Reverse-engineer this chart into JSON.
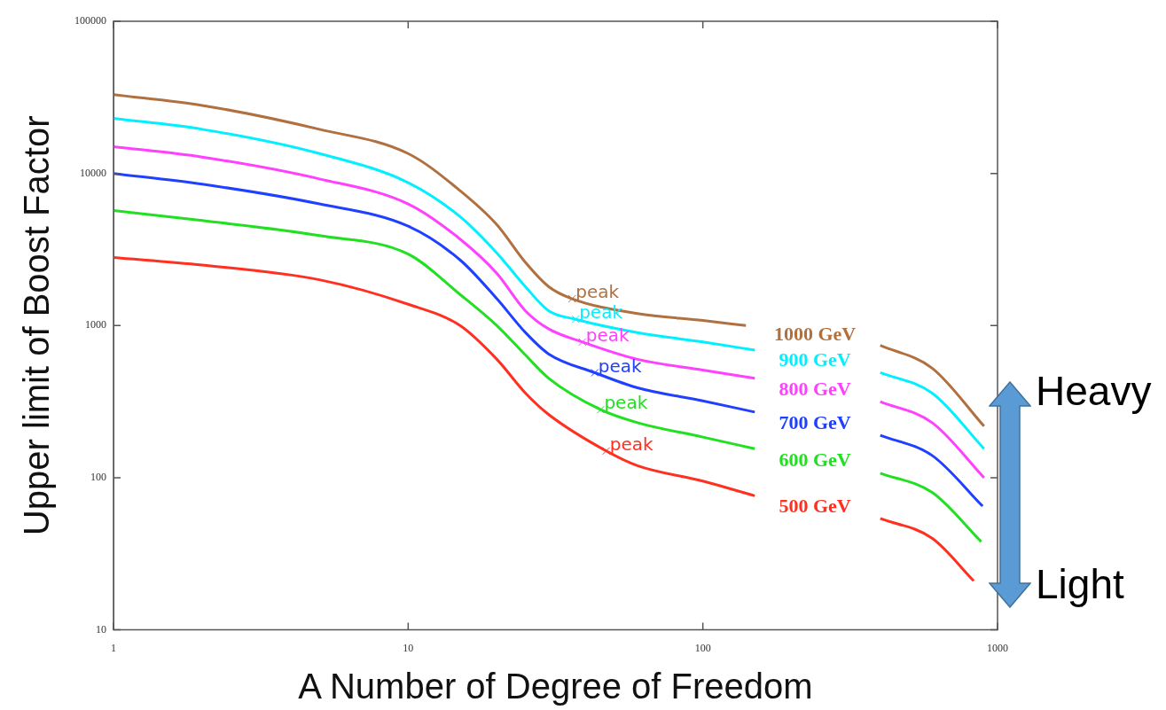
{
  "chart_data": {
    "type": "line",
    "xlabel": "A Number of Degree of Freedom",
    "ylabel": "Upper limit of Boost Factor",
    "xlim": [
      1,
      1000
    ],
    "ylim": [
      10,
      100000
    ],
    "xticks": [
      1,
      10,
      100,
      1000
    ],
    "yticks": [
      10,
      100,
      1000,
      10000,
      100000
    ],
    "log": "xy",
    "grid": false,
    "legend": false,
    "marker": "none",
    "line_style": "solid",
    "series": [
      {
        "name": "1000 GeV",
        "color": "#b07040",
        "x": [
          1,
          2,
          5,
          10,
          15,
          20,
          25,
          30,
          36,
          60,
          100,
          140,
          240,
          400,
          600,
          900
        ],
        "values": [
          33000,
          28000,
          19500,
          13500,
          7700,
          4600,
          2600,
          1800,
          1500,
          1200,
          1080,
          1000,
          null,
          740,
          525,
          218
        ]
      },
      {
        "name": "900 GeV",
        "color": "#00f0ff",
        "x": [
          1,
          2,
          5,
          10,
          15,
          20,
          25,
          30,
          37,
          60,
          100,
          150,
          240,
          400,
          600,
          900
        ],
        "values": [
          23000,
          19500,
          13500,
          8700,
          5200,
          3000,
          1800,
          1250,
          1100,
          900,
          780,
          690,
          null,
          490,
          360,
          155
        ]
      },
      {
        "name": "800 GeV",
        "color": "#ff40ff",
        "x": [
          1,
          2,
          5,
          10,
          15,
          20,
          25,
          30,
          39,
          60,
          100,
          150,
          240,
          400,
          600,
          900
        ],
        "values": [
          15000,
          12800,
          9200,
          6300,
          3700,
          2200,
          1250,
          950,
          780,
          600,
          510,
          450,
          null,
          316,
          230,
          100
        ]
      },
      {
        "name": "700 GeV",
        "color": "#2040ff",
        "x": [
          1,
          2,
          5,
          10,
          15,
          20,
          25,
          30,
          43,
          60,
          100,
          150,
          240,
          400,
          600,
          890
        ],
        "values": [
          10000,
          8500,
          6300,
          4500,
          2700,
          1500,
          900,
          650,
          490,
          390,
          320,
          270,
          null,
          190,
          140,
          65
        ]
      },
      {
        "name": "600 GeV",
        "color": "#20e020",
        "x": [
          1,
          2,
          5,
          10,
          15,
          20,
          25,
          30,
          45,
          60,
          100,
          150,
          240,
          400,
          600,
          880
        ],
        "values": [
          5700,
          4900,
          3900,
          2950,
          1600,
          1000,
          640,
          450,
          280,
          230,
          185,
          155,
          null,
          107,
          80,
          38
        ]
      },
      {
        "name": "500 GeV",
        "color": "#ff3020",
        "x": [
          1,
          2,
          5,
          10,
          15,
          20,
          25,
          30,
          47,
          60,
          100,
          150,
          240,
          400,
          600,
          830
        ],
        "values": [
          2800,
          2500,
          2000,
          1380,
          1000,
          600,
          360,
          260,
          150,
          120,
          95,
          76,
          null,
          54,
          40,
          21
        ]
      }
    ],
    "annotations": [
      {
        "text": "peak",
        "x": 36,
        "y": 1500
      },
      {
        "text": "peak",
        "x": 37,
        "y": 1100
      },
      {
        "text": "peak",
        "x": 39,
        "y": 780
      },
      {
        "text": "peak",
        "x": 43,
        "y": 490
      },
      {
        "text": "peak",
        "x": 45,
        "y": 280
      },
      {
        "text": "peak",
        "x": 47,
        "y": 150
      },
      "Heavy",
      "Light"
    ]
  }
}
